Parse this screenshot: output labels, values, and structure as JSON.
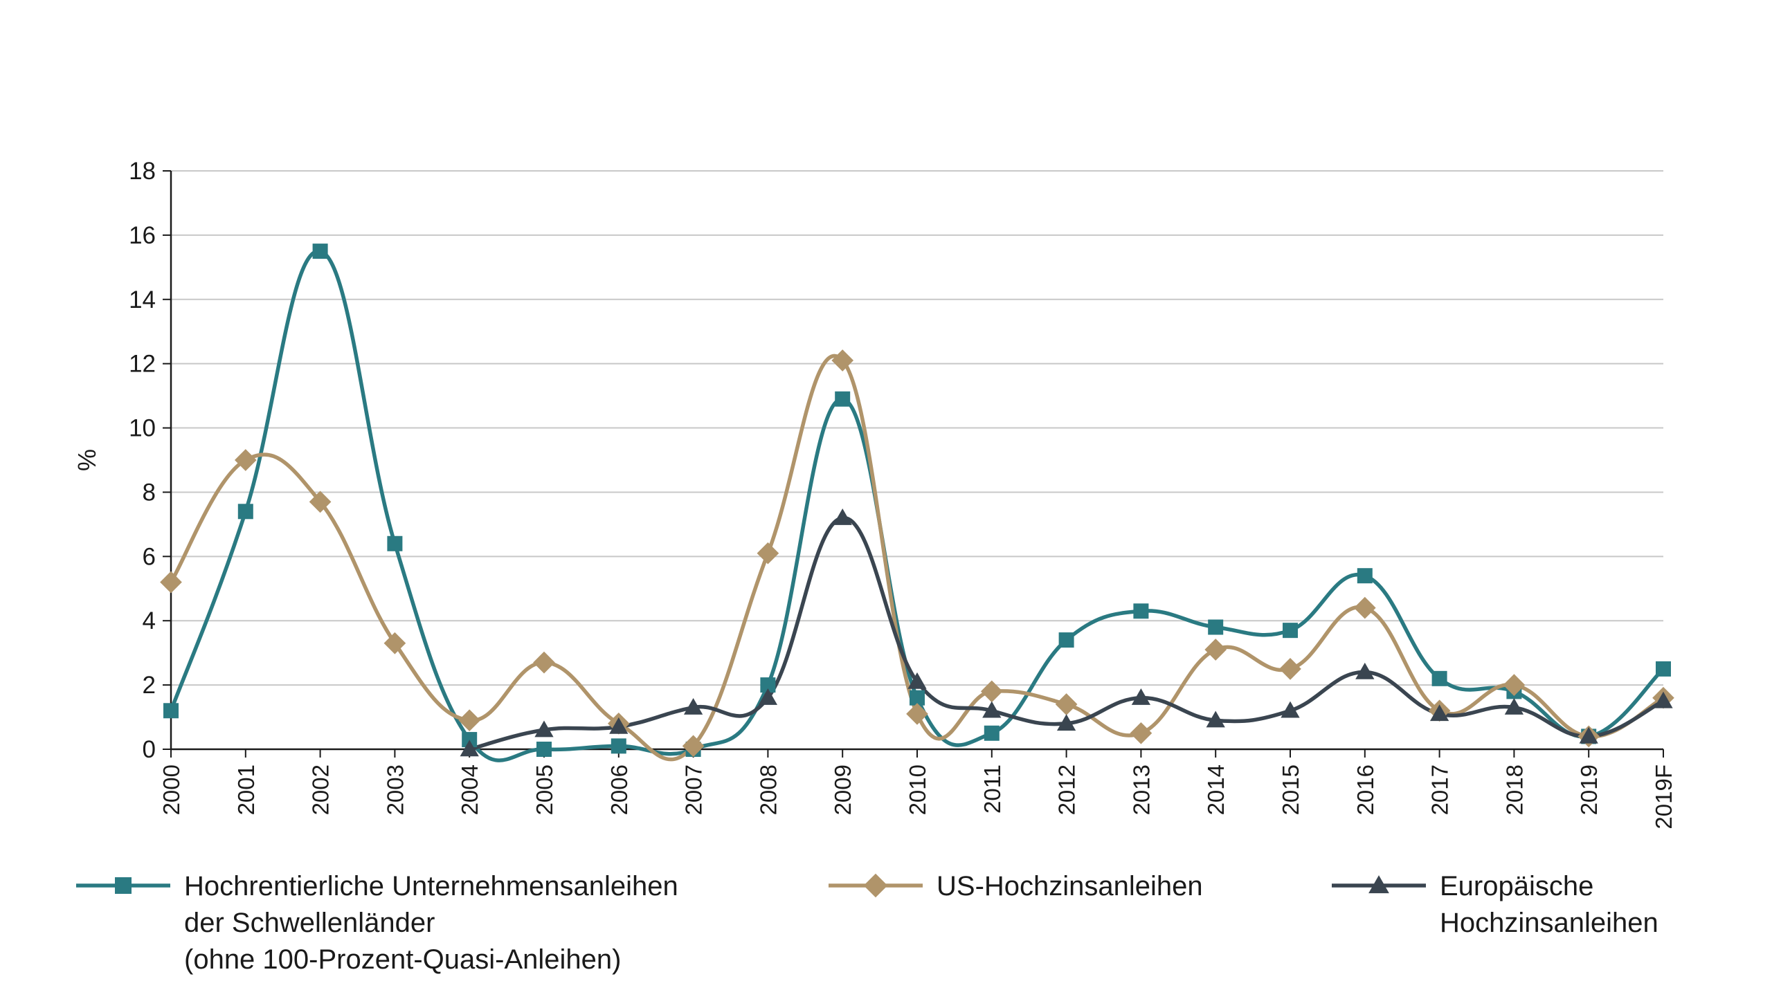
{
  "chart_data": {
    "type": "line",
    "ylabel": "%",
    "ylim": [
      0,
      18
    ],
    "yticks": [
      "0",
      "2",
      "4",
      "6",
      "8",
      "10",
      "12",
      "14",
      "16",
      "18"
    ],
    "categories": [
      "2000",
      "2001",
      "2002",
      "2003",
      "2004",
      "2005",
      "2006",
      "2007",
      "2008",
      "2009",
      "2010",
      "2011",
      "2012",
      "2013",
      "2014",
      "2015",
      "2016",
      "2017",
      "2018",
      "2019",
      "2019F"
    ],
    "grid": true,
    "legend_position": "bottom",
    "series": [
      {
        "name": "Hochrentierliche Unternehmensanleihen\nder Schwellenländer\n(ohne 100-Prozent-Quasi-Anleihen)",
        "color": "#2a7a82",
        "marker": "square",
        "values": [
          1.2,
          7.4,
          15.5,
          6.4,
          0.3,
          0.0,
          0.1,
          0.0,
          2.0,
          10.9,
          1.6,
          0.5,
          3.4,
          4.3,
          3.8,
          3.7,
          5.4,
          2.2,
          1.8,
          0.4,
          2.5
        ]
      },
      {
        "name": "US-Hochzinsanleihen",
        "color": "#b0946a",
        "marker": "diamond",
        "values": [
          5.2,
          9.0,
          7.7,
          3.3,
          0.9,
          2.7,
          0.8,
          0.1,
          6.1,
          12.1,
          1.1,
          1.8,
          1.4,
          0.5,
          3.1,
          2.5,
          4.4,
          1.2,
          2.0,
          0.4,
          1.6
        ]
      },
      {
        "name": "Europäische\nHochzinsanleihen",
        "color": "#3a4550",
        "marker": "triangle",
        "values": [
          null,
          null,
          null,
          null,
          0.0,
          0.6,
          0.7,
          1.3,
          1.6,
          7.2,
          2.1,
          1.2,
          0.8,
          1.6,
          0.9,
          1.2,
          2.4,
          1.1,
          1.3,
          0.4,
          1.5
        ]
      }
    ]
  }
}
